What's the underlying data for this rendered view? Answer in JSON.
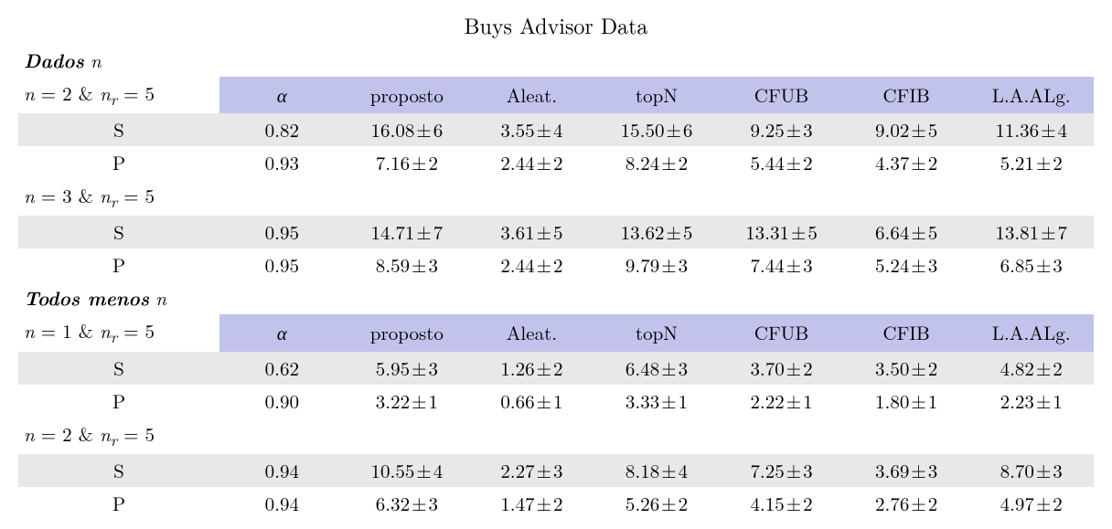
{
  "title": "Buys Advisor Data",
  "columns": [
    "α",
    "proposto",
    "Aleat.",
    "topN",
    "CFUB",
    "CFIB",
    "L.A.ALg."
  ],
  "colors": {
    "header_bg": "#c2c3ec",
    "row_alt_bg": "#e8e8e8",
    "background": "#ffffff",
    "text": "#000000"
  },
  "font": {
    "family": "Latin Modern Roman / CMU Serif",
    "size_pt": 16,
    "title_size_pt": 18
  },
  "sections": [
    {
      "heading": "Dados",
      "heading_var": "n",
      "blocks": [
        {
          "params": {
            "n": 2,
            "nr": 5
          },
          "show_header": true,
          "rows": [
            {
              "label": "S",
              "alpha": "0.82",
              "cells": [
                {
                  "v": "16.08",
                  "e": "6"
                },
                {
                  "v": "3.55",
                  "e": "4"
                },
                {
                  "v": "15.50",
                  "e": "6"
                },
                {
                  "v": "9.25",
                  "e": "3"
                },
                {
                  "v": "9.02",
                  "e": "5"
                },
                {
                  "v": "11.36",
                  "e": "4"
                }
              ]
            },
            {
              "label": "P",
              "alpha": "0.93",
              "cells": [
                {
                  "v": "7.16",
                  "e": "2"
                },
                {
                  "v": "2.44",
                  "e": "2"
                },
                {
                  "v": "8.24",
                  "e": "2"
                },
                {
                  "v": "5.44",
                  "e": "2"
                },
                {
                  "v": "4.37",
                  "e": "2"
                },
                {
                  "v": "5.21",
                  "e": "2"
                }
              ]
            }
          ]
        },
        {
          "params": {
            "n": 3,
            "nr": 5
          },
          "show_header": false,
          "rows": [
            {
              "label": "S",
              "alpha": "0.95",
              "cells": [
                {
                  "v": "14.71",
                  "e": "7"
                },
                {
                  "v": "3.61",
                  "e": "5"
                },
                {
                  "v": "13.62",
                  "e": "5"
                },
                {
                  "v": "13.31",
                  "e": "5"
                },
                {
                  "v": "6.64",
                  "e": "5"
                },
                {
                  "v": "13.81",
                  "e": "7"
                }
              ]
            },
            {
              "label": "P",
              "alpha": "0.95",
              "cells": [
                {
                  "v": "8.59",
                  "e": "3"
                },
                {
                  "v": "2.44",
                  "e": "2"
                },
                {
                  "v": "9.79",
                  "e": "3"
                },
                {
                  "v": "7.44",
                  "e": "3"
                },
                {
                  "v": "5.24",
                  "e": "3"
                },
                {
                  "v": "6.85",
                  "e": "3"
                }
              ]
            }
          ]
        }
      ]
    },
    {
      "heading": "Todos menos",
      "heading_var": "n",
      "blocks": [
        {
          "params": {
            "n": 1,
            "nr": 5
          },
          "show_header": true,
          "rows": [
            {
              "label": "S",
              "alpha": "0.62",
              "cells": [
                {
                  "v": "5.95",
                  "e": "3"
                },
                {
                  "v": "1.26",
                  "e": "2"
                },
                {
                  "v": "6.48",
                  "e": "3"
                },
                {
                  "v": "3.70",
                  "e": "2"
                },
                {
                  "v": "3.50",
                  "e": "2"
                },
                {
                  "v": "4.82",
                  "e": "2"
                }
              ]
            },
            {
              "label": "P",
              "alpha": "0.90",
              "cells": [
                {
                  "v": "3.22",
                  "e": "1"
                },
                {
                  "v": "0.66",
                  "e": "1"
                },
                {
                  "v": "3.33",
                  "e": "1"
                },
                {
                  "v": "2.22",
                  "e": "1"
                },
                {
                  "v": "1.80",
                  "e": "1"
                },
                {
                  "v": "2.23",
                  "e": "1"
                }
              ]
            }
          ]
        },
        {
          "params": {
            "n": 2,
            "nr": 5
          },
          "show_header": false,
          "rows": [
            {
              "label": "S",
              "alpha": "0.94",
              "cells": [
                {
                  "v": "10.55",
                  "e": "4"
                },
                {
                  "v": "2.27",
                  "e": "3"
                },
                {
                  "v": "8.18",
                  "e": "4"
                },
                {
                  "v": "7.25",
                  "e": "3"
                },
                {
                  "v": "3.69",
                  "e": "3"
                },
                {
                  "v": "8.70",
                  "e": "3"
                }
              ]
            },
            {
              "label": "P",
              "alpha": "0.94",
              "cells": [
                {
                  "v": "6.32",
                  "e": "3"
                },
                {
                  "v": "1.47",
                  "e": "2"
                },
                {
                  "v": "5.26",
                  "e": "2"
                },
                {
                  "v": "4.15",
                  "e": "2"
                },
                {
                  "v": "2.76",
                  "e": "2"
                },
                {
                  "v": "4.97",
                  "e": "2"
                }
              ]
            }
          ]
        }
      ]
    }
  ]
}
